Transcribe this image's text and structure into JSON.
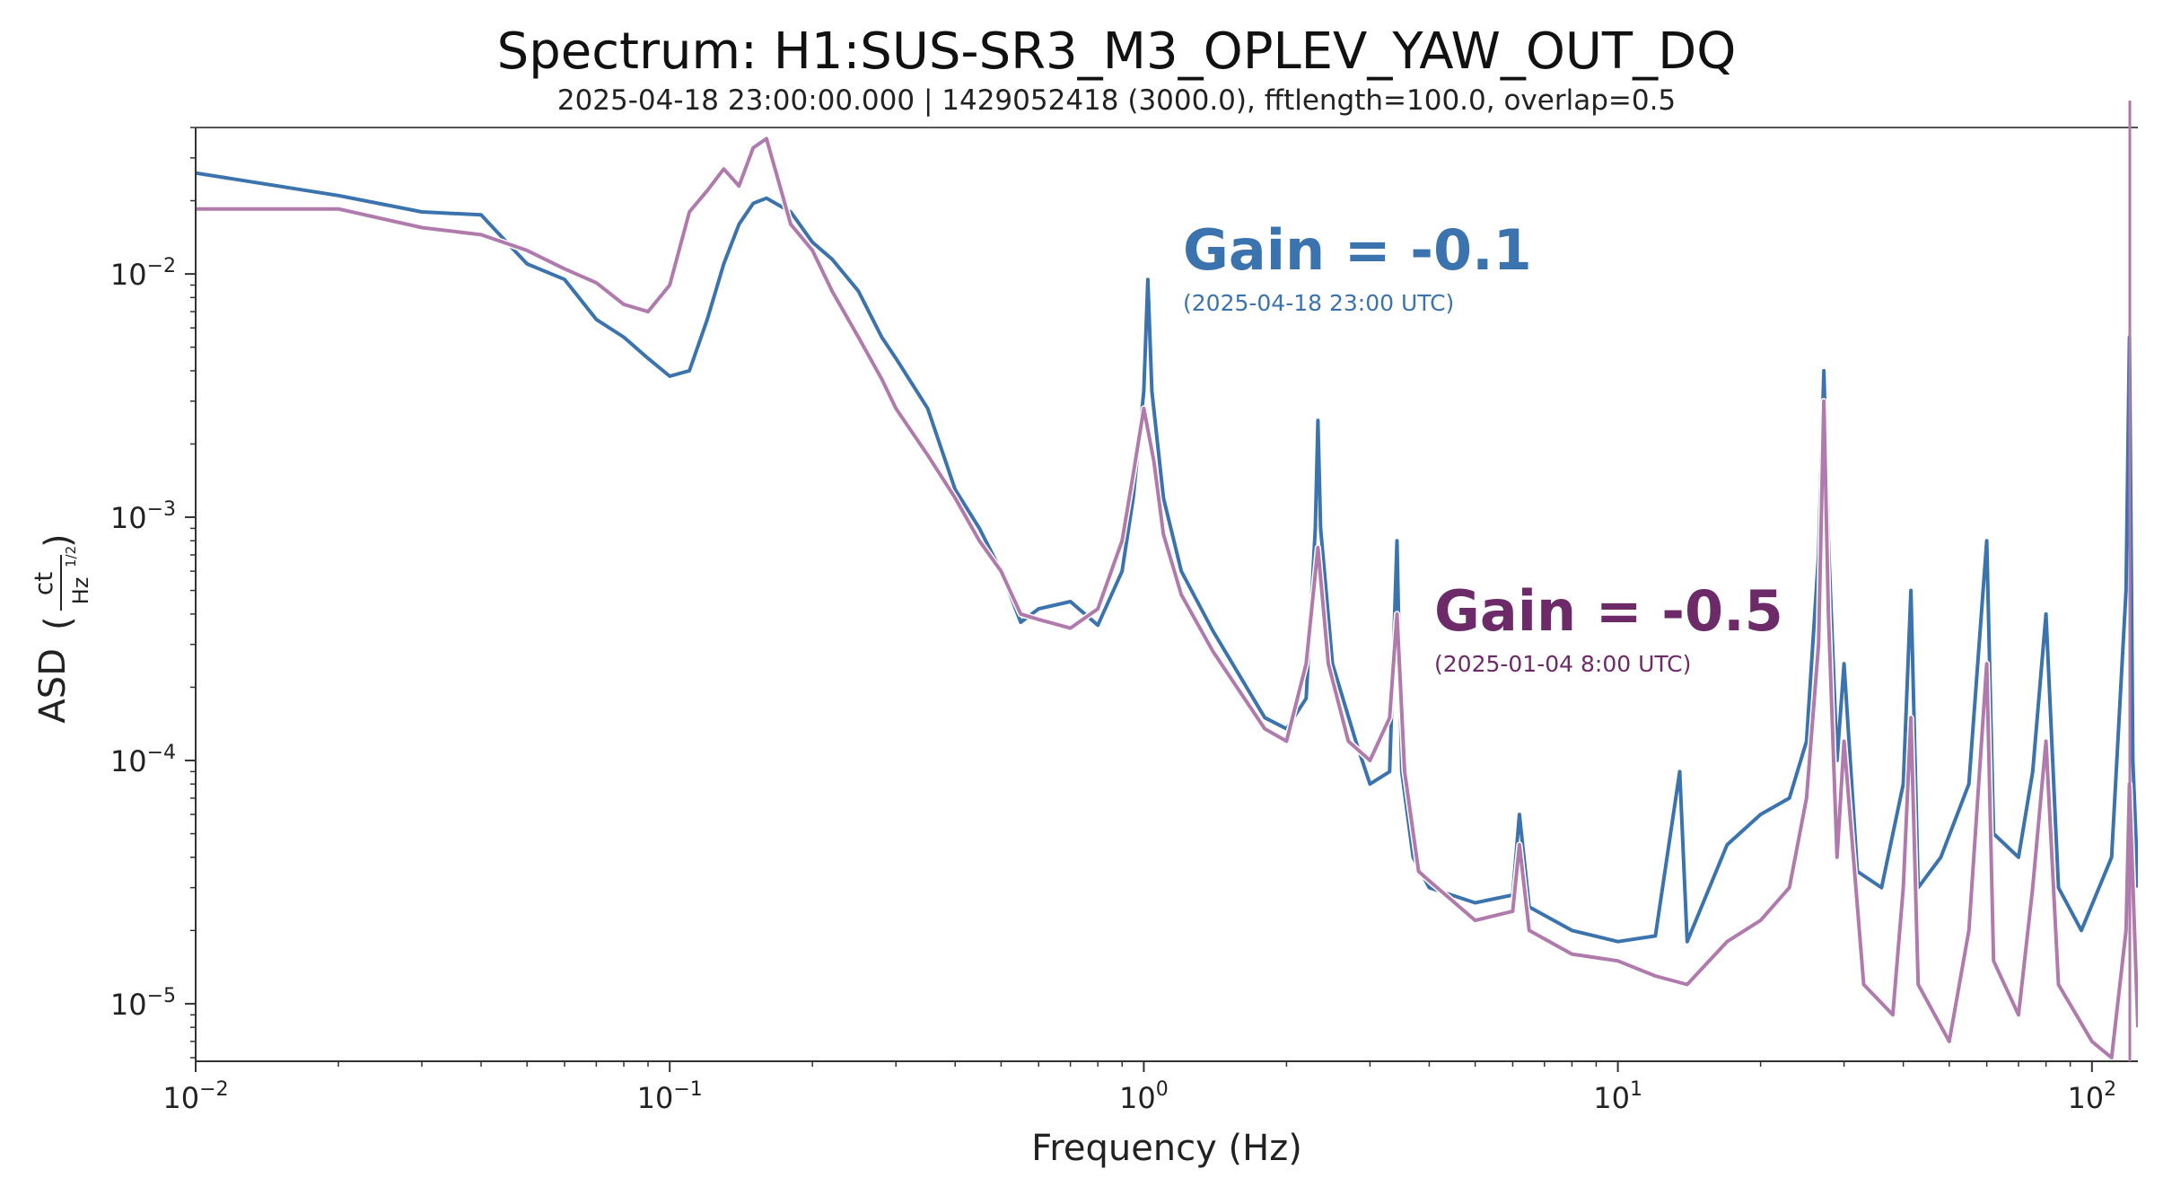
{
  "chart_data": {
    "type": "line",
    "title": "Spectrum: H1:SUS-SR3_M3_OPLEV_YAW_OUT_DQ",
    "subtitle": "2025-04-18 23:00:00.000 | 1429052418 (3000.0), fftlength=100.0, overlap=0.5",
    "xlabel": "Frequency (Hz)",
    "ylabel": {
      "prefix": "ASD",
      "unit_numerator": "ct",
      "unit_denominator": "Hz",
      "unit_exponent": "1/2"
    },
    "x_scale": "log",
    "y_scale": "log",
    "xlim": [
      0.01,
      125
    ],
    "ylim": [
      5.8e-06,
      0.04
    ],
    "x_ticks": [
      {
        "value": 0.01,
        "base": "10",
        "exp": "−2"
      },
      {
        "value": 0.1,
        "base": "10",
        "exp": "−1"
      },
      {
        "value": 1,
        "base": "10",
        "exp": "0"
      },
      {
        "value": 10,
        "base": "10",
        "exp": "1"
      },
      {
        "value": 100,
        "base": "10",
        "exp": "2"
      }
    ],
    "y_ticks": [
      {
        "value": 1e-05,
        "base": "10",
        "exp": "−5"
      },
      {
        "value": 0.0001,
        "base": "10",
        "exp": "−4"
      },
      {
        "value": 0.001,
        "base": "10",
        "exp": "−3"
      },
      {
        "value": 0.01,
        "base": "10",
        "exp": "−2"
      }
    ],
    "grid": false,
    "series": [
      {
        "color": "#3b73ae",
        "label_title": "Gain =  -0.1",
        "label_date": "(2025-04-18 23:00 UTC)",
        "points": [
          [
            0.01,
            0.026
          ],
          [
            0.02,
            0.021
          ],
          [
            0.03,
            0.018
          ],
          [
            0.04,
            0.0175
          ],
          [
            0.05,
            0.011
          ],
          [
            0.06,
            0.0095
          ],
          [
            0.07,
            0.0065
          ],
          [
            0.08,
            0.0055
          ],
          [
            0.09,
            0.0045
          ],
          [
            0.1,
            0.0038
          ],
          [
            0.11,
            0.004
          ],
          [
            0.12,
            0.0065
          ],
          [
            0.13,
            0.011
          ],
          [
            0.14,
            0.016
          ],
          [
            0.15,
            0.0195
          ],
          [
            0.16,
            0.0205
          ],
          [
            0.18,
            0.018
          ],
          [
            0.2,
            0.0135
          ],
          [
            0.22,
            0.0115
          ],
          [
            0.25,
            0.0085
          ],
          [
            0.28,
            0.0055
          ],
          [
            0.3,
            0.0045
          ],
          [
            0.35,
            0.0028
          ],
          [
            0.4,
            0.0013
          ],
          [
            0.45,
            0.0009
          ],
          [
            0.5,
            0.0006
          ],
          [
            0.55,
            0.00037
          ],
          [
            0.6,
            0.00042
          ],
          [
            0.7,
            0.00045
          ],
          [
            0.8,
            0.00036
          ],
          [
            0.9,
            0.0006
          ],
          [
            0.95,
            0.0012
          ],
          [
            1.0,
            0.0033
          ],
          [
            1.02,
            0.0095
          ],
          [
            1.04,
            0.0033
          ],
          [
            1.1,
            0.0012
          ],
          [
            1.2,
            0.0006
          ],
          [
            1.4,
            0.00034
          ],
          [
            1.6,
            0.00022
          ],
          [
            1.8,
            0.00015
          ],
          [
            2.0,
            0.000135
          ],
          [
            2.2,
            0.00018
          ],
          [
            2.3,
            0.0009
          ],
          [
            2.33,
            0.0025
          ],
          [
            2.36,
            0.0009
          ],
          [
            2.5,
            0.00025
          ],
          [
            2.8,
            0.00012
          ],
          [
            3.0,
            8e-05
          ],
          [
            3.3,
            9e-05
          ],
          [
            3.42,
            0.0008
          ],
          [
            3.5,
            9e-05
          ],
          [
            3.7,
            4e-05
          ],
          [
            4.0,
            3e-05
          ],
          [
            5.0,
            2.6e-05
          ],
          [
            6.0,
            2.8e-05
          ],
          [
            6.2,
            6e-05
          ],
          [
            6.5,
            2.5e-05
          ],
          [
            8.0,
            2e-05
          ],
          [
            10.0,
            1.8e-05
          ],
          [
            12.0,
            1.9e-05
          ],
          [
            13.5,
            9e-05
          ],
          [
            14.0,
            1.8e-05
          ],
          [
            17.0,
            4.5e-05
          ],
          [
            20.0,
            6e-05
          ],
          [
            23.0,
            7e-05
          ],
          [
            25.0,
            0.00012
          ],
          [
            26.5,
            0.0007
          ],
          [
            27.2,
            0.004
          ],
          [
            27.8,
            0.0008
          ],
          [
            29.0,
            0.0001
          ],
          [
            30.0,
            0.00025
          ],
          [
            32.0,
            3.5e-05
          ],
          [
            36.0,
            3e-05
          ],
          [
            40.0,
            8e-05
          ],
          [
            41.5,
            0.0005
          ],
          [
            43.0,
            3e-05
          ],
          [
            48.0,
            4e-05
          ],
          [
            55.0,
            8e-05
          ],
          [
            60.0,
            0.0008
          ],
          [
            62.0,
            5e-05
          ],
          [
            70.0,
            4e-05
          ],
          [
            75.0,
            9e-05
          ],
          [
            80.0,
            0.0004
          ],
          [
            85.0,
            3e-05
          ],
          [
            95.0,
            2e-05
          ],
          [
            110.0,
            4e-05
          ],
          [
            118.0,
            0.0005
          ],
          [
            120.0,
            0.0055
          ],
          [
            122.0,
            0.0001
          ],
          [
            125.0,
            3e-05
          ]
        ]
      },
      {
        "color": "#b07aad",
        "label_title": "Gain =  -0.5",
        "label_date": "(2025-01-04 8:00 UTC)",
        "points": [
          [
            0.01,
            0.0185
          ],
          [
            0.02,
            0.0185
          ],
          [
            0.03,
            0.0155
          ],
          [
            0.04,
            0.0145
          ],
          [
            0.05,
            0.0125
          ],
          [
            0.06,
            0.0105
          ],
          [
            0.07,
            0.0092
          ],
          [
            0.08,
            0.0075
          ],
          [
            0.09,
            0.007
          ],
          [
            0.1,
            0.009
          ],
          [
            0.11,
            0.018
          ],
          [
            0.12,
            0.022
          ],
          [
            0.13,
            0.027
          ],
          [
            0.14,
            0.023
          ],
          [
            0.15,
            0.033
          ],
          [
            0.16,
            0.036
          ],
          [
            0.18,
            0.016
          ],
          [
            0.2,
            0.0125
          ],
          [
            0.22,
            0.0085
          ],
          [
            0.25,
            0.0055
          ],
          [
            0.28,
            0.0037
          ],
          [
            0.3,
            0.0028
          ],
          [
            0.35,
            0.0018
          ],
          [
            0.4,
            0.0012
          ],
          [
            0.45,
            0.0008
          ],
          [
            0.5,
            0.0006
          ],
          [
            0.55,
            0.0004
          ],
          [
            0.6,
            0.00038
          ],
          [
            0.7,
            0.00035
          ],
          [
            0.8,
            0.00042
          ],
          [
            0.9,
            0.0008
          ],
          [
            0.95,
            0.0015
          ],
          [
            1.0,
            0.0028
          ],
          [
            1.05,
            0.0017
          ],
          [
            1.1,
            0.00085
          ],
          [
            1.2,
            0.00048
          ],
          [
            1.4,
            0.00028
          ],
          [
            1.6,
            0.00019
          ],
          [
            1.8,
            0.000135
          ],
          [
            2.0,
            0.00012
          ],
          [
            2.2,
            0.00025
          ],
          [
            2.33,
            0.00075
          ],
          [
            2.45,
            0.00025
          ],
          [
            2.7,
            0.00012
          ],
          [
            3.0,
            0.0001
          ],
          [
            3.3,
            0.00015
          ],
          [
            3.42,
            0.0004
          ],
          [
            3.55,
            9e-05
          ],
          [
            3.8,
            3.5e-05
          ],
          [
            4.0,
            3.2e-05
          ],
          [
            5.0,
            2.2e-05
          ],
          [
            6.0,
            2.4e-05
          ],
          [
            6.2,
            4.5e-05
          ],
          [
            6.5,
            2e-05
          ],
          [
            8.0,
            1.6e-05
          ],
          [
            10.0,
            1.5e-05
          ],
          [
            12.0,
            1.3e-05
          ],
          [
            14.0,
            1.2e-05
          ],
          [
            17.0,
            1.8e-05
          ],
          [
            20.0,
            2.2e-05
          ],
          [
            23.0,
            3e-05
          ],
          [
            25.0,
            7e-05
          ],
          [
            26.5,
            0.0003
          ],
          [
            27.2,
            0.003
          ],
          [
            27.8,
            0.0004
          ],
          [
            29.0,
            4e-05
          ],
          [
            30.0,
            0.00012
          ],
          [
            33.0,
            1.2e-05
          ],
          [
            38.0,
            9e-06
          ],
          [
            40.0,
            3e-05
          ],
          [
            41.5,
            0.00015
          ],
          [
            43.0,
            1.2e-05
          ],
          [
            50.0,
            7e-06
          ],
          [
            55.0,
            2e-05
          ],
          [
            60.0,
            0.00025
          ],
          [
            62.0,
            1.5e-05
          ],
          [
            70.0,
            9e-06
          ],
          [
            75.0,
            3e-05
          ],
          [
            80.0,
            0.00012
          ],
          [
            85.0,
            1.2e-05
          ],
          [
            100.0,
            7e-06
          ],
          [
            110.0,
            6e-06
          ],
          [
            118.0,
            2e-05
          ],
          [
            120.0,
            8e-05
          ],
          [
            125.0,
            8e-06
          ]
        ]
      }
    ]
  }
}
